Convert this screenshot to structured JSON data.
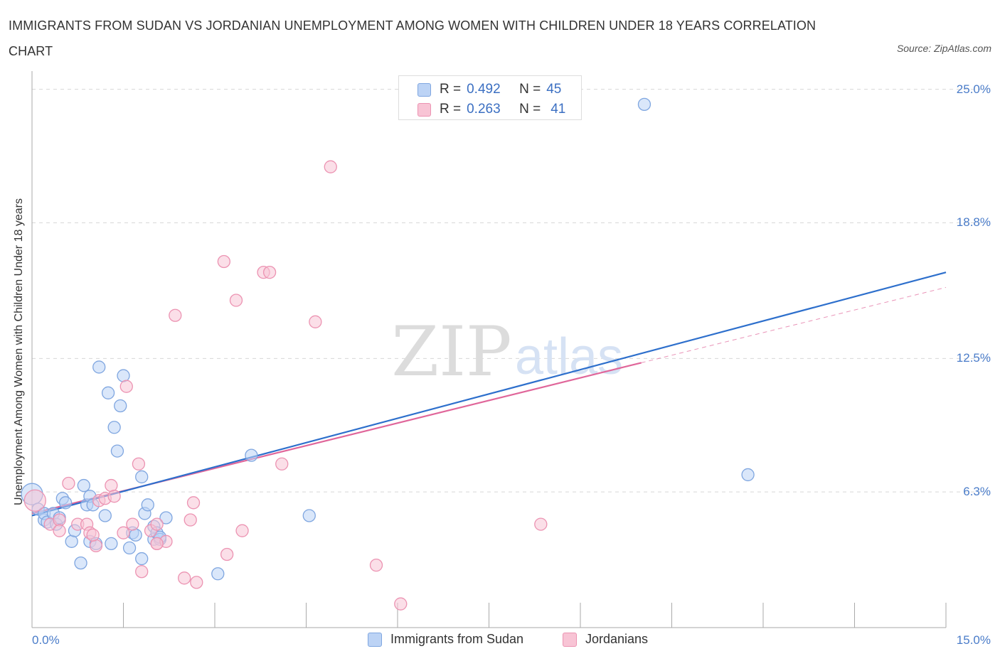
{
  "title": "IMMIGRANTS FROM SUDAN VS JORDANIAN UNEMPLOYMENT AMONG WOMEN WITH CHILDREN UNDER 18 YEARS CORRELATION CHART",
  "source": "Source: ZipAtlas.com",
  "watermark": {
    "zip": "ZIP",
    "atlas": "atlas"
  },
  "legend": {
    "r_label": "R =",
    "n_label": "N =",
    "rows": [
      {
        "r": "0.492",
        "n": "45"
      },
      {
        "r": "0.263",
        "n": "41"
      }
    ]
  },
  "colors": {
    "sudan_fill": "#bcd3f5",
    "sudan_stroke": "#7fa6e0",
    "sudan_line": "#2d6fcc",
    "jordan_fill": "#f8c4d5",
    "jordan_stroke": "#ec93b2",
    "jordan_line": "#e0669a",
    "tick_text": "#4a7cc9",
    "grid": "#d8d8d8"
  },
  "chart_data": {
    "type": "scatter",
    "title": "IMMIGRANTS FROM SUDAN VS JORDANIAN UNEMPLOYMENT AMONG WOMEN WITH CHILDREN UNDER 18 YEARS CORRELATION CHART",
    "xlabel": "",
    "ylabel": "Unemployment Among Women with Children Under 18 years",
    "xlim": [
      0,
      15
    ],
    "ylim": [
      0,
      25
    ],
    "x_tick_labels": [
      "0.0%",
      "15.0%"
    ],
    "y_ticks": [
      {
        "value": 6.3,
        "label": "6.3%"
      },
      {
        "value": 12.5,
        "label": "12.5%"
      },
      {
        "value": 18.8,
        "label": "18.8%"
      },
      {
        "value": 25.0,
        "label": "25.0%"
      }
    ],
    "x_minor_ticks": [
      1.5,
      3.0,
      4.5,
      6.0,
      7.5,
      9.0,
      10.5,
      12.0,
      13.5,
      15.0
    ],
    "grid": true,
    "series": [
      {
        "name": "Immigrants from Sudan",
        "trend": {
          "x": [
            0,
            15
          ],
          "y": [
            5.2,
            16.5
          ],
          "style": "solid"
        },
        "points": [
          {
            "x": 0.0,
            "y": 6.2,
            "big": true
          },
          {
            "x": 0.1,
            "y": 5.5
          },
          {
            "x": 0.2,
            "y": 5.0
          },
          {
            "x": 0.2,
            "y": 5.3
          },
          {
            "x": 0.25,
            "y": 4.9
          },
          {
            "x": 0.35,
            "y": 5.3
          },
          {
            "x": 0.4,
            "y": 4.8
          },
          {
            "x": 0.45,
            "y": 5.1
          },
          {
            "x": 0.5,
            "y": 6.0
          },
          {
            "x": 0.55,
            "y": 5.8
          },
          {
            "x": 0.65,
            "y": 4.0
          },
          {
            "x": 0.7,
            "y": 4.5
          },
          {
            "x": 0.8,
            "y": 3.0
          },
          {
            "x": 0.85,
            "y": 6.6
          },
          {
            "x": 0.9,
            "y": 5.7
          },
          {
            "x": 0.95,
            "y": 4.0
          },
          {
            "x": 0.95,
            "y": 6.1
          },
          {
            "x": 1.0,
            "y": 5.7
          },
          {
            "x": 1.05,
            "y": 3.9
          },
          {
            "x": 1.1,
            "y": 12.1
          },
          {
            "x": 1.2,
            "y": 5.2
          },
          {
            "x": 1.25,
            "y": 10.9
          },
          {
            "x": 1.3,
            "y": 3.9
          },
          {
            "x": 1.35,
            "y": 9.3
          },
          {
            "x": 1.4,
            "y": 8.2
          },
          {
            "x": 1.45,
            "y": 10.3
          },
          {
            "x": 1.5,
            "y": 11.7
          },
          {
            "x": 1.6,
            "y": 3.7
          },
          {
            "x": 1.65,
            "y": 4.4
          },
          {
            "x": 1.7,
            "y": 4.3
          },
          {
            "x": 1.8,
            "y": 7.0
          },
          {
            "x": 1.8,
            "y": 3.2
          },
          {
            "x": 1.85,
            "y": 5.3
          },
          {
            "x": 1.9,
            "y": 5.7
          },
          {
            "x": 2.0,
            "y": 4.7
          },
          {
            "x": 2.0,
            "y": 4.1
          },
          {
            "x": 2.05,
            "y": 4.4
          },
          {
            "x": 2.1,
            "y": 4.1
          },
          {
            "x": 2.2,
            "y": 5.1
          },
          {
            "x": 3.05,
            "y": 2.5
          },
          {
            "x": 3.6,
            "y": 8.0
          },
          {
            "x": 4.55,
            "y": 5.2
          },
          {
            "x": 10.05,
            "y": 24.3
          },
          {
            "x": 11.75,
            "y": 7.1
          },
          {
            "x": 2.1,
            "y": 4.2
          }
        ]
      },
      {
        "name": "Jordanians",
        "trend": {
          "x": [
            0,
            10.0
          ],
          "y": [
            5.3,
            12.3
          ],
          "style": "solid",
          "dashed_to": {
            "x": 15,
            "y": 15.8
          }
        },
        "points": [
          {
            "x": 0.05,
            "y": 5.9,
            "big": true
          },
          {
            "x": 0.3,
            "y": 4.8
          },
          {
            "x": 0.45,
            "y": 5.0
          },
          {
            "x": 0.45,
            "y": 4.5
          },
          {
            "x": 0.6,
            "y": 6.7
          },
          {
            "x": 0.75,
            "y": 4.8
          },
          {
            "x": 0.9,
            "y": 4.8
          },
          {
            "x": 0.95,
            "y": 4.4
          },
          {
            "x": 1.05,
            "y": 3.8
          },
          {
            "x": 1.1,
            "y": 5.9
          },
          {
            "x": 1.2,
            "y": 6.0
          },
          {
            "x": 1.3,
            "y": 6.6
          },
          {
            "x": 1.35,
            "y": 6.1
          },
          {
            "x": 1.5,
            "y": 4.4
          },
          {
            "x": 1.55,
            "y": 11.2
          },
          {
            "x": 1.65,
            "y": 4.8
          },
          {
            "x": 1.75,
            "y": 7.6
          },
          {
            "x": 1.8,
            "y": 2.6
          },
          {
            "x": 1.95,
            "y": 4.5
          },
          {
            "x": 2.05,
            "y": 3.9
          },
          {
            "x": 2.05,
            "y": 4.8
          },
          {
            "x": 2.2,
            "y": 4.0
          },
          {
            "x": 2.35,
            "y": 14.5
          },
          {
            "x": 2.5,
            "y": 2.3
          },
          {
            "x": 2.6,
            "y": 5.0
          },
          {
            "x": 2.65,
            "y": 5.8
          },
          {
            "x": 2.7,
            "y": 2.1
          },
          {
            "x": 3.15,
            "y": 17.0
          },
          {
            "x": 3.2,
            "y": 3.4
          },
          {
            "x": 3.35,
            "y": 15.2
          },
          {
            "x": 3.45,
            "y": 4.5
          },
          {
            "x": 3.8,
            "y": 16.5
          },
          {
            "x": 3.9,
            "y": 16.5
          },
          {
            "x": 4.1,
            "y": 7.6
          },
          {
            "x": 4.65,
            "y": 14.2
          },
          {
            "x": 4.9,
            "y": 21.4
          },
          {
            "x": 5.65,
            "y": 2.9
          },
          {
            "x": 6.05,
            "y": 1.1
          },
          {
            "x": 8.35,
            "y": 4.8
          },
          {
            "x": 2.05,
            "y": 3.9
          },
          {
            "x": 1.0,
            "y": 4.3
          }
        ]
      }
    ]
  }
}
